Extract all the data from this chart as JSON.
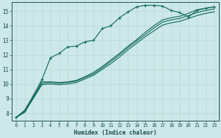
{
  "xlabel": "Humidex (Indice chaleur)",
  "ylabel": "",
  "bg_color": "#cce8e8",
  "line_color": "#1a6e62",
  "grid_color_major": "#b8d8d8",
  "grid_color_minor": "#d0e8e8",
  "xlim": [
    -0.5,
    23.5
  ],
  "ylim": [
    7.5,
    15.6
  ],
  "xticks": [
    0,
    1,
    2,
    3,
    4,
    5,
    6,
    7,
    8,
    9,
    10,
    11,
    12,
    13,
    14,
    15,
    16,
    17,
    18,
    19,
    20,
    21,
    22,
    23
  ],
  "yticks": [
    8,
    9,
    10,
    11,
    12,
    13,
    14,
    15
  ],
  "series_marked": [
    [
      7.7,
      8.2,
      9.2,
      10.3,
      11.8,
      12.1,
      12.55,
      12.6,
      12.9,
      13.0,
      13.8,
      14.0,
      14.55,
      14.95,
      15.3,
      15.4,
      15.4,
      15.35,
      15.05,
      14.9,
      14.6,
      15.05,
      15.2,
      15.3
    ]
  ],
  "series_plain": [
    [
      7.7,
      8.15,
      9.1,
      10.15,
      10.15,
      10.1,
      10.15,
      10.25,
      10.5,
      10.8,
      11.2,
      11.65,
      12.1,
      12.6,
      13.05,
      13.55,
      14.0,
      14.4,
      14.55,
      14.65,
      14.85,
      15.1,
      15.2,
      15.3
    ],
    [
      7.7,
      8.1,
      9.05,
      10.05,
      10.1,
      10.05,
      10.1,
      10.2,
      10.45,
      10.7,
      11.1,
      11.55,
      12.0,
      12.5,
      12.95,
      13.4,
      13.85,
      14.25,
      14.4,
      14.5,
      14.7,
      14.9,
      15.05,
      15.15
    ],
    [
      7.7,
      8.05,
      9.0,
      9.95,
      10.0,
      9.95,
      10.0,
      10.1,
      10.35,
      10.6,
      11.0,
      11.4,
      11.85,
      12.35,
      12.8,
      13.25,
      13.65,
      14.05,
      14.2,
      14.3,
      14.5,
      14.7,
      14.85,
      14.95
    ]
  ]
}
